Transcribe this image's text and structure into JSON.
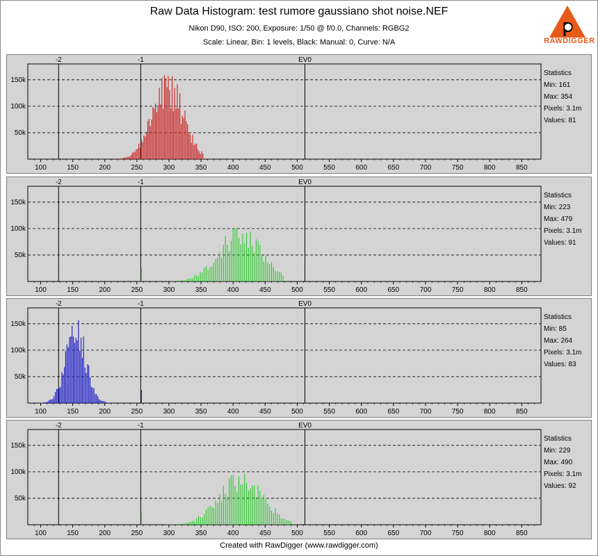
{
  "header": {
    "title": "Raw Data Histogram: test rumore gaussiano shot noise.NEF",
    "line1": "Nikon D90, ISO: 200, Exposure: 1/50 @ f/0.0, Channels: RGBG2",
    "line2": "Scale: Linear, Bin: 1 levels, Black: Manual: 0, Curve: N/A",
    "logo_text": "RAWDIGGER",
    "logo_letter": "p"
  },
  "footer": "Created with RawDigger (www.rawdigger.com)",
  "colors": {
    "red": "#cc2a2a",
    "green": "#33cc33",
    "blue": "#2222cc",
    "panel_bg": "#d4d4d4",
    "logo": "#e85a1a"
  },
  "chart_data": [
    {
      "type": "bar",
      "channel": "R",
      "color": "#cc2a2a",
      "xlim": [
        80,
        880
      ],
      "ylim": [
        0,
        180000
      ],
      "x_ticks": [
        100,
        150,
        200,
        250,
        300,
        350,
        400,
        450,
        500,
        550,
        600,
        650,
        700,
        750,
        800,
        850
      ],
      "y_ticks": [
        {
          "value": 50000,
          "label": "50k"
        },
        {
          "value": 100000,
          "label": "100k"
        },
        {
          "value": 150000,
          "label": "150k"
        }
      ],
      "ev_marks": [
        {
          "x": 128,
          "label": "-2"
        },
        {
          "x": 256,
          "label": "-1"
        },
        {
          "x": 512,
          "label": "EV0"
        }
      ],
      "stats": {
        "title": "Statistics",
        "min": "Min: 161",
        "max": "Max: 354",
        "pixels": "Pixels: 3.1m",
        "values": "Values: 81"
      },
      "series": [
        {
          "min": 161,
          "max": 354,
          "peak_at": 298,
          "peak": 175000,
          "sigma": 24,
          "step": 2,
          "spike_x": null,
          "spike": 0
        }
      ]
    },
    {
      "type": "bar",
      "channel": "G",
      "color": "#33cc33",
      "xlim": [
        80,
        880
      ],
      "ylim": [
        0,
        180000
      ],
      "x_ticks": [
        100,
        150,
        200,
        250,
        300,
        350,
        400,
        450,
        500,
        550,
        600,
        650,
        700,
        750,
        800,
        850
      ],
      "y_ticks": [
        {
          "value": 50000,
          "label": "50k"
        },
        {
          "value": 100000,
          "label": "100k"
        },
        {
          "value": 150000,
          "label": "150k"
        }
      ],
      "ev_marks": [
        {
          "x": 128,
          "label": "-2"
        },
        {
          "x": 256,
          "label": "-1"
        },
        {
          "x": 512,
          "label": "EV0"
        }
      ],
      "stats": {
        "title": "Statistics",
        "min": "Min: 223",
        "max": "Max: 479",
        "pixels": "Pixels: 3.1m",
        "values": "Values: 91"
      },
      "series": [
        {
          "min": 223,
          "max": 479,
          "peak_at": 412,
          "peak": 115000,
          "sigma": 34,
          "step": 3,
          "spike_x": 256,
          "spike": 25000
        }
      ]
    },
    {
      "type": "bar",
      "channel": "B",
      "color": "#2222cc",
      "xlim": [
        80,
        880
      ],
      "ylim": [
        0,
        180000
      ],
      "x_ticks": [
        100,
        150,
        200,
        250,
        300,
        350,
        400,
        450,
        500,
        550,
        600,
        650,
        700,
        750,
        800,
        850
      ],
      "y_ticks": [
        {
          "value": 50000,
          "label": "50k"
        },
        {
          "value": 100000,
          "label": "100k"
        },
        {
          "value": 150000,
          "label": "150k"
        }
      ],
      "ev_marks": [
        {
          "x": 128,
          "label": "-2"
        },
        {
          "x": 256,
          "label": "-1"
        },
        {
          "x": 512,
          "label": "EV0"
        }
      ],
      "stats": {
        "title": "Statistics",
        "min": "Min: 85",
        "max": "Max: 264",
        "pixels": "Pixels: 3.1m",
        "values": "Values: 83"
      },
      "series": [
        {
          "min": 85,
          "max": 264,
          "peak_at": 155,
          "peak": 168000,
          "sigma": 16,
          "step": 2,
          "spike_x": 256,
          "spike": 25000
        }
      ]
    },
    {
      "type": "bar",
      "channel": "G2",
      "color": "#33cc33",
      "xlim": [
        80,
        880
      ],
      "ylim": [
        0,
        180000
      ],
      "x_ticks": [
        100,
        150,
        200,
        250,
        300,
        350,
        400,
        450,
        500,
        550,
        600,
        650,
        700,
        750,
        800,
        850
      ],
      "y_ticks": [
        {
          "value": 50000,
          "label": "50k"
        },
        {
          "value": 100000,
          "label": "100k"
        },
        {
          "value": 150000,
          "label": "150k"
        }
      ],
      "ev_marks": [
        {
          "x": 128,
          "label": "-2"
        },
        {
          "x": 256,
          "label": "-1"
        },
        {
          "x": 512,
          "label": "EV0"
        }
      ],
      "stats": {
        "title": "Statistics",
        "min": "Min: 229",
        "max": "Max: 490",
        "pixels": "Pixels: 3.1m",
        "values": "Values: 92"
      },
      "series": [
        {
          "min": 229,
          "max": 490,
          "peak_at": 412,
          "peak": 112000,
          "sigma": 34,
          "step": 3,
          "spike_x": 256,
          "spike": 25000
        }
      ]
    }
  ]
}
